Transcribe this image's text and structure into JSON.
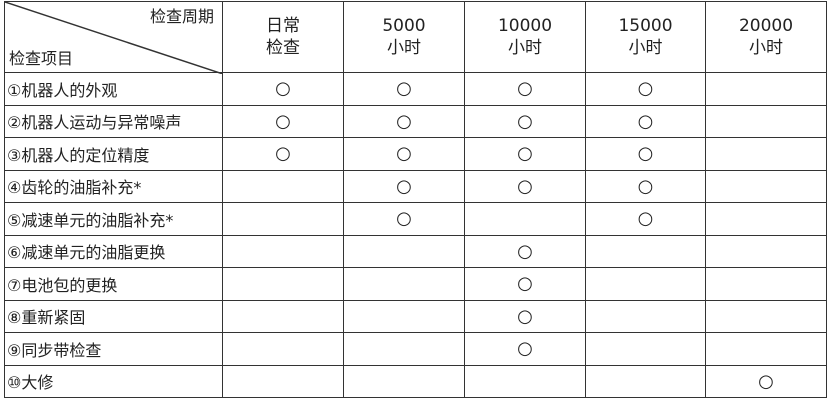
{
  "header": {
    "period_label": "检查周期",
    "item_label": "检查项目",
    "columns": [
      {
        "line1": "日常",
        "line2": "检查"
      },
      {
        "line1": "5000",
        "line2": "小时"
      },
      {
        "line1": "10000",
        "line2": "小时"
      },
      {
        "line1": "15000",
        "line2": "小时"
      },
      {
        "line1": "20000",
        "line2": "小时"
      }
    ]
  },
  "rows": [
    {
      "item": "①机器人的外观",
      "checks": [
        "○",
        "○",
        "○",
        "○",
        ""
      ]
    },
    {
      "item": "②机器人运动与异常噪声",
      "checks": [
        "○",
        "○",
        "○",
        "○",
        ""
      ]
    },
    {
      "item": "③机器人的定位精度",
      "checks": [
        "○",
        "○",
        "○",
        "○",
        ""
      ]
    },
    {
      "item": "④齿轮的油脂补充*",
      "checks": [
        "",
        "○",
        "○",
        "○",
        ""
      ]
    },
    {
      "item": "⑤减速单元的油脂补充*",
      "checks": [
        "",
        "○",
        "",
        "○",
        ""
      ]
    },
    {
      "item": "⑥减速单元的油脂更换",
      "checks": [
        "",
        "",
        "○",
        "",
        ""
      ]
    },
    {
      "item": "⑦电池包的更换",
      "checks": [
        "",
        "",
        "○",
        "",
        ""
      ]
    },
    {
      "item": "⑧重新紧固",
      "checks": [
        "",
        "",
        "○",
        "",
        ""
      ]
    },
    {
      "item": "⑨同步带检查",
      "checks": [
        "",
        "",
        "○",
        "",
        ""
      ]
    },
    {
      "item": "⑩大修",
      "checks": [
        "",
        "",
        "",
        "",
        "○"
      ]
    }
  ]
}
